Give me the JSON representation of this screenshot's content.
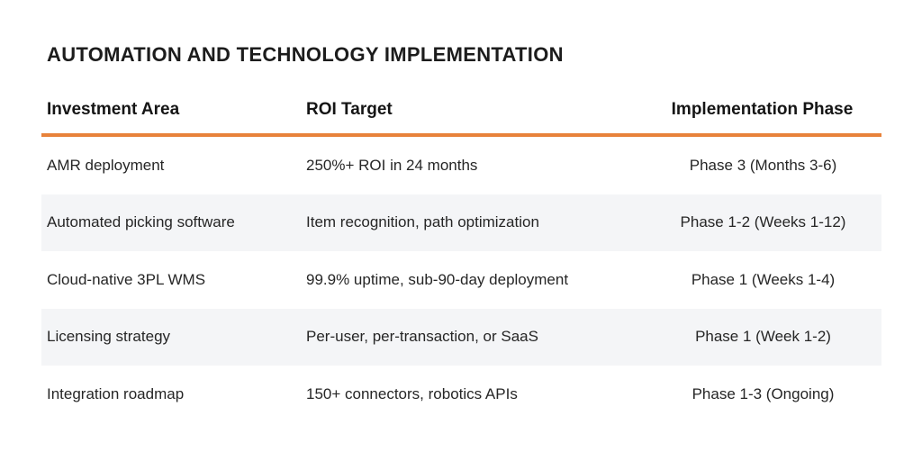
{
  "title": "AUTOMATION AND TECHNOLOGY IMPLEMENTATION",
  "table": {
    "headers": [
      "Investment Area",
      "ROI Target",
      "Implementation Phase"
    ],
    "rows": [
      [
        "AMR deployment",
        "250%+ ROI in 24 months",
        "Phase 3 (Months 3-6)"
      ],
      [
        "Automated picking software",
        "Item recognition, path optimization",
        "Phase 1-2 (Weeks 1-12)"
      ],
      [
        "Cloud-native 3PL WMS",
        "99.9% uptime, sub-90-day deployment",
        "Phase 1 (Weeks 1-4)"
      ],
      [
        "Licensing strategy",
        "Per-user, per-transaction, or SaaS",
        "Phase 1 (Week 1-2)"
      ],
      [
        "Integration roadmap",
        "150+ connectors, robotics APIs",
        "Phase 1-3 (Ongoing)"
      ]
    ]
  },
  "colors": {
    "accent": "#e8823a",
    "row_shade": "#f4f5f7",
    "text": "#1c1c1c"
  }
}
